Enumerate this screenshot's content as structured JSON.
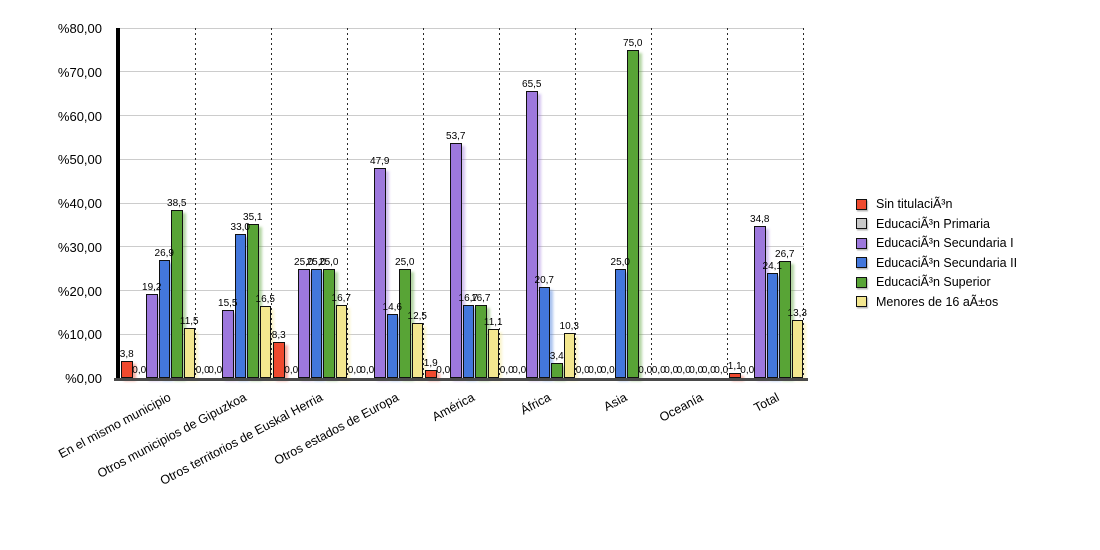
{
  "chart_data": {
    "type": "bar",
    "title": "",
    "ylim": [
      0,
      80
    ],
    "grid": true,
    "legend_position": "right",
    "value_labels": true,
    "decimal_separator": ",",
    "y_ticks": [
      {
        "value": 0,
        "label": "%0,00"
      },
      {
        "value": 10,
        "label": "%10,00"
      },
      {
        "value": 20,
        "label": "%20,00"
      },
      {
        "value": 30,
        "label": "%30,00"
      },
      {
        "value": 40,
        "label": "%40,00"
      },
      {
        "value": 50,
        "label": "%50,00"
      },
      {
        "value": 60,
        "label": "%60,00"
      },
      {
        "value": 70,
        "label": "%70,00"
      },
      {
        "value": 80,
        "label": "%80,00"
      }
    ],
    "categories": [
      "En el mismo municipio",
      "Otros municipios de Gipuzkoa",
      "Otros territorios de Euskal Herria",
      "Otros estados de Europa",
      "América",
      "África",
      "Asia",
      "Oceanía",
      "Total"
    ],
    "series": [
      {
        "name": "Sin titulaciÃ³n",
        "color": "#ef4a2f",
        "values": [
          3.8,
          0.0,
          8.3,
          0.0,
          1.9,
          0.0,
          0.0,
          0.0,
          1.1
        ]
      },
      {
        "name": "EducaciÃ³n Primaria",
        "color": "#c9c9c9",
        "values": [
          0.0,
          0.0,
          0.0,
          0.0,
          0.0,
          0.0,
          0.0,
          0.0,
          0.0
        ]
      },
      {
        "name": "EducaciÃ³n Secundaria I",
        "color": "#9d78dd",
        "values": [
          19.2,
          15.5,
          25.0,
          47.9,
          53.7,
          65.5,
          0.0,
          0.0,
          34.8
        ]
      },
      {
        "name": "EducaciÃ³n Secundaria II",
        "color": "#4377dc",
        "values": [
          26.9,
          33.0,
          25.0,
          14.6,
          16.7,
          20.7,
          25.0,
          0.0,
          24.1
        ]
      },
      {
        "name": "EducaciÃ³n Superior",
        "color": "#58a436",
        "values": [
          38.5,
          35.1,
          25.0,
          25.0,
          16.7,
          3.4,
          75.0,
          0.0,
          26.7
        ]
      },
      {
        "name": "Menores de 16 aÃ±os",
        "color": "#f3e78f",
        "values": [
          11.5,
          16.5,
          16.7,
          12.5,
          11.1,
          10.3,
          0.0,
          0.0,
          13.3
        ]
      }
    ]
  }
}
